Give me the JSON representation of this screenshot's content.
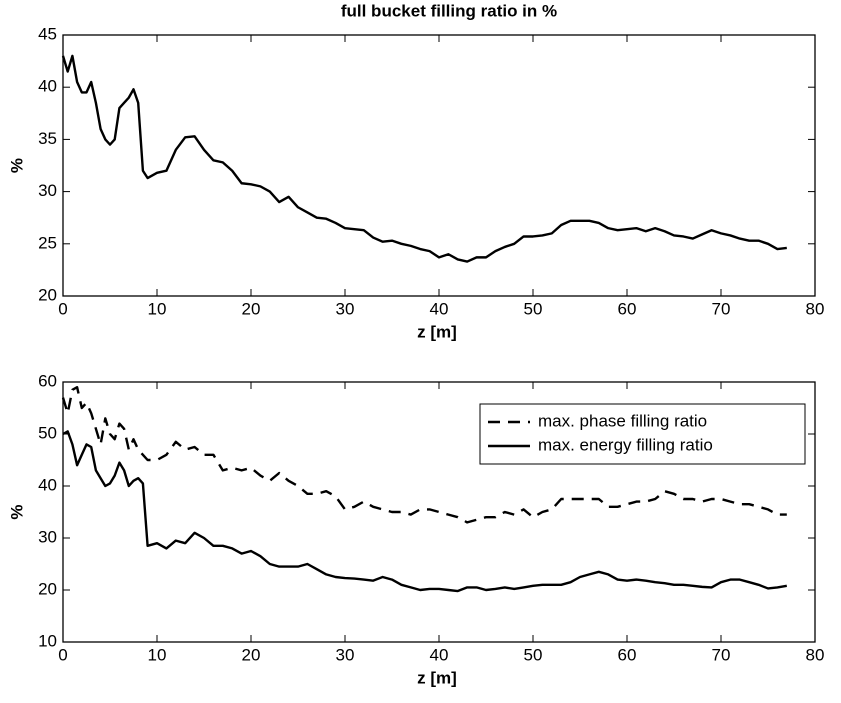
{
  "chart_data": [
    {
      "type": "line",
      "title": "full bucket filling ratio in %",
      "xlabel": "z [m]",
      "ylabel": "%",
      "xlim": [
        0,
        80
      ],
      "xticks": [
        0,
        10,
        20,
        30,
        40,
        50,
        60,
        70,
        80
      ],
      "ylim": [
        20,
        45
      ],
      "yticks": [
        20,
        25,
        30,
        35,
        40,
        45
      ],
      "grid": false,
      "x": [
        0,
        0.5,
        1,
        1.5,
        2,
        2.5,
        3,
        3.5,
        4,
        4.5,
        5,
        5.5,
        6,
        6.5,
        7,
        7.5,
        8,
        8.5,
        9,
        10,
        11,
        12,
        13,
        14,
        15,
        16,
        17,
        18,
        19,
        20,
        21,
        22,
        23,
        24,
        25,
        26,
        27,
        28,
        29,
        30,
        31,
        32,
        33,
        34,
        35,
        36,
        37,
        38,
        39,
        40,
        41,
        42,
        43,
        44,
        45,
        46,
        47,
        48,
        49,
        50,
        51,
        52,
        53,
        54,
        55,
        56,
        57,
        58,
        59,
        60,
        61,
        62,
        63,
        64,
        65,
        66,
        67,
        68,
        69,
        70,
        71,
        72,
        73,
        74,
        75,
        76,
        77
      ],
      "series": [
        {
          "color": "#000000",
          "dash": "solid",
          "values": [
            43,
            41.5,
            43,
            40.5,
            39.5,
            39.5,
            40.5,
            38.5,
            36,
            35,
            34.5,
            35,
            38,
            38.5,
            39,
            39.8,
            38.5,
            32,
            31.3,
            31.8,
            32,
            34,
            35.2,
            35.3,
            34,
            33,
            32.8,
            32,
            30.8,
            30.7,
            30.5,
            30,
            29,
            29.5,
            28.5,
            28,
            27.5,
            27.4,
            27,
            26.5,
            26.4,
            26.3,
            25.6,
            25.2,
            25.3,
            25,
            24.8,
            24.5,
            24.3,
            23.7,
            24,
            23.5,
            23.3,
            23.7,
            23.7,
            24.3,
            24.7,
            25,
            25.7,
            25.7,
            25.8,
            26,
            26.8,
            27.2,
            27.2,
            27.2,
            27,
            26.5,
            26.3,
            26.4,
            26.5,
            26.2,
            26.5,
            26.2,
            25.8,
            25.7,
            25.5,
            25.9,
            26.3,
            26,
            25.8,
            25.5,
            25.3,
            25.3,
            25,
            24.5,
            24.6
          ]
        }
      ]
    },
    {
      "type": "line",
      "xlabel": "z [m]",
      "ylabel": "%",
      "xlim": [
        0,
        80
      ],
      "xticks": [
        0,
        10,
        20,
        30,
        40,
        50,
        60,
        70,
        80
      ],
      "ylim": [
        10,
        60
      ],
      "yticks": [
        10,
        20,
        30,
        40,
        50,
        60
      ],
      "grid": false,
      "legend": "upper right",
      "x": [
        0,
        0.5,
        1,
        1.5,
        2,
        2.5,
        3,
        3.5,
        4,
        4.5,
        5,
        5.5,
        6,
        6.5,
        7,
        7.5,
        8,
        8.5,
        9,
        10,
        11,
        12,
        13,
        14,
        15,
        16,
        17,
        18,
        19,
        20,
        21,
        22,
        23,
        24,
        25,
        26,
        27,
        28,
        29,
        30,
        31,
        32,
        33,
        34,
        35,
        36,
        37,
        38,
        39,
        40,
        41,
        42,
        43,
        44,
        45,
        46,
        47,
        48,
        49,
        50,
        51,
        52,
        53,
        54,
        55,
        56,
        57,
        58,
        59,
        60,
        61,
        62,
        63,
        64,
        65,
        66,
        67,
        68,
        69,
        70,
        71,
        72,
        73,
        74,
        75,
        76,
        77
      ],
      "series": [
        {
          "name": "max. phase filling ratio",
          "color": "#000000",
          "dash": "dashed",
          "values": [
            57,
            54,
            58.5,
            59,
            55,
            56,
            54,
            51,
            48,
            53,
            50,
            49,
            52,
            51,
            47,
            49,
            47,
            46,
            45,
            45,
            46,
            48.5,
            47,
            47.5,
            46,
            46,
            43,
            43.5,
            43,
            43.5,
            42,
            41,
            42.5,
            41,
            40,
            38.5,
            38.5,
            39,
            38,
            35.5,
            36,
            37,
            36,
            35.5,
            35,
            35,
            34.5,
            35.5,
            35.5,
            35,
            34.5,
            34,
            33,
            33.5,
            34,
            34,
            35,
            34.5,
            35.5,
            34,
            35,
            35.5,
            37.5,
            37.5,
            37.5,
            37.5,
            37.5,
            36,
            36,
            36.5,
            37,
            37,
            37.5,
            39,
            38.5,
            37.5,
            37.5,
            37,
            37.5,
            37.5,
            37,
            36.5,
            36.5,
            36,
            35.5,
            34.5,
            34.5
          ]
        },
        {
          "name": "max. energy filling ratio",
          "color": "#000000",
          "dash": "solid",
          "values": [
            50,
            50.5,
            48,
            44,
            46,
            48,
            47.5,
            43,
            41.5,
            40,
            40.5,
            42,
            44.5,
            43,
            40,
            41,
            41.5,
            40.5,
            28.5,
            29,
            28,
            29.5,
            29,
            31,
            30,
            28.5,
            28.5,
            28,
            27,
            27.5,
            26.5,
            25,
            24.5,
            24.5,
            24.5,
            25,
            24,
            23,
            22.5,
            22.3,
            22.2,
            22,
            21.8,
            22.5,
            22,
            21,
            20.5,
            20,
            20.2,
            20.2,
            20,
            19.8,
            20.5,
            20.5,
            20,
            20.2,
            20.5,
            20.2,
            20.5,
            20.8,
            21,
            21,
            21,
            21.5,
            22.5,
            23,
            23.5,
            23,
            22,
            21.8,
            22,
            21.8,
            21.5,
            21.3,
            21,
            21,
            20.8,
            20.6,
            20.5,
            21.5,
            22,
            22,
            21.5,
            21,
            20.3,
            20.5,
            20.8
          ]
        }
      ]
    }
  ]
}
